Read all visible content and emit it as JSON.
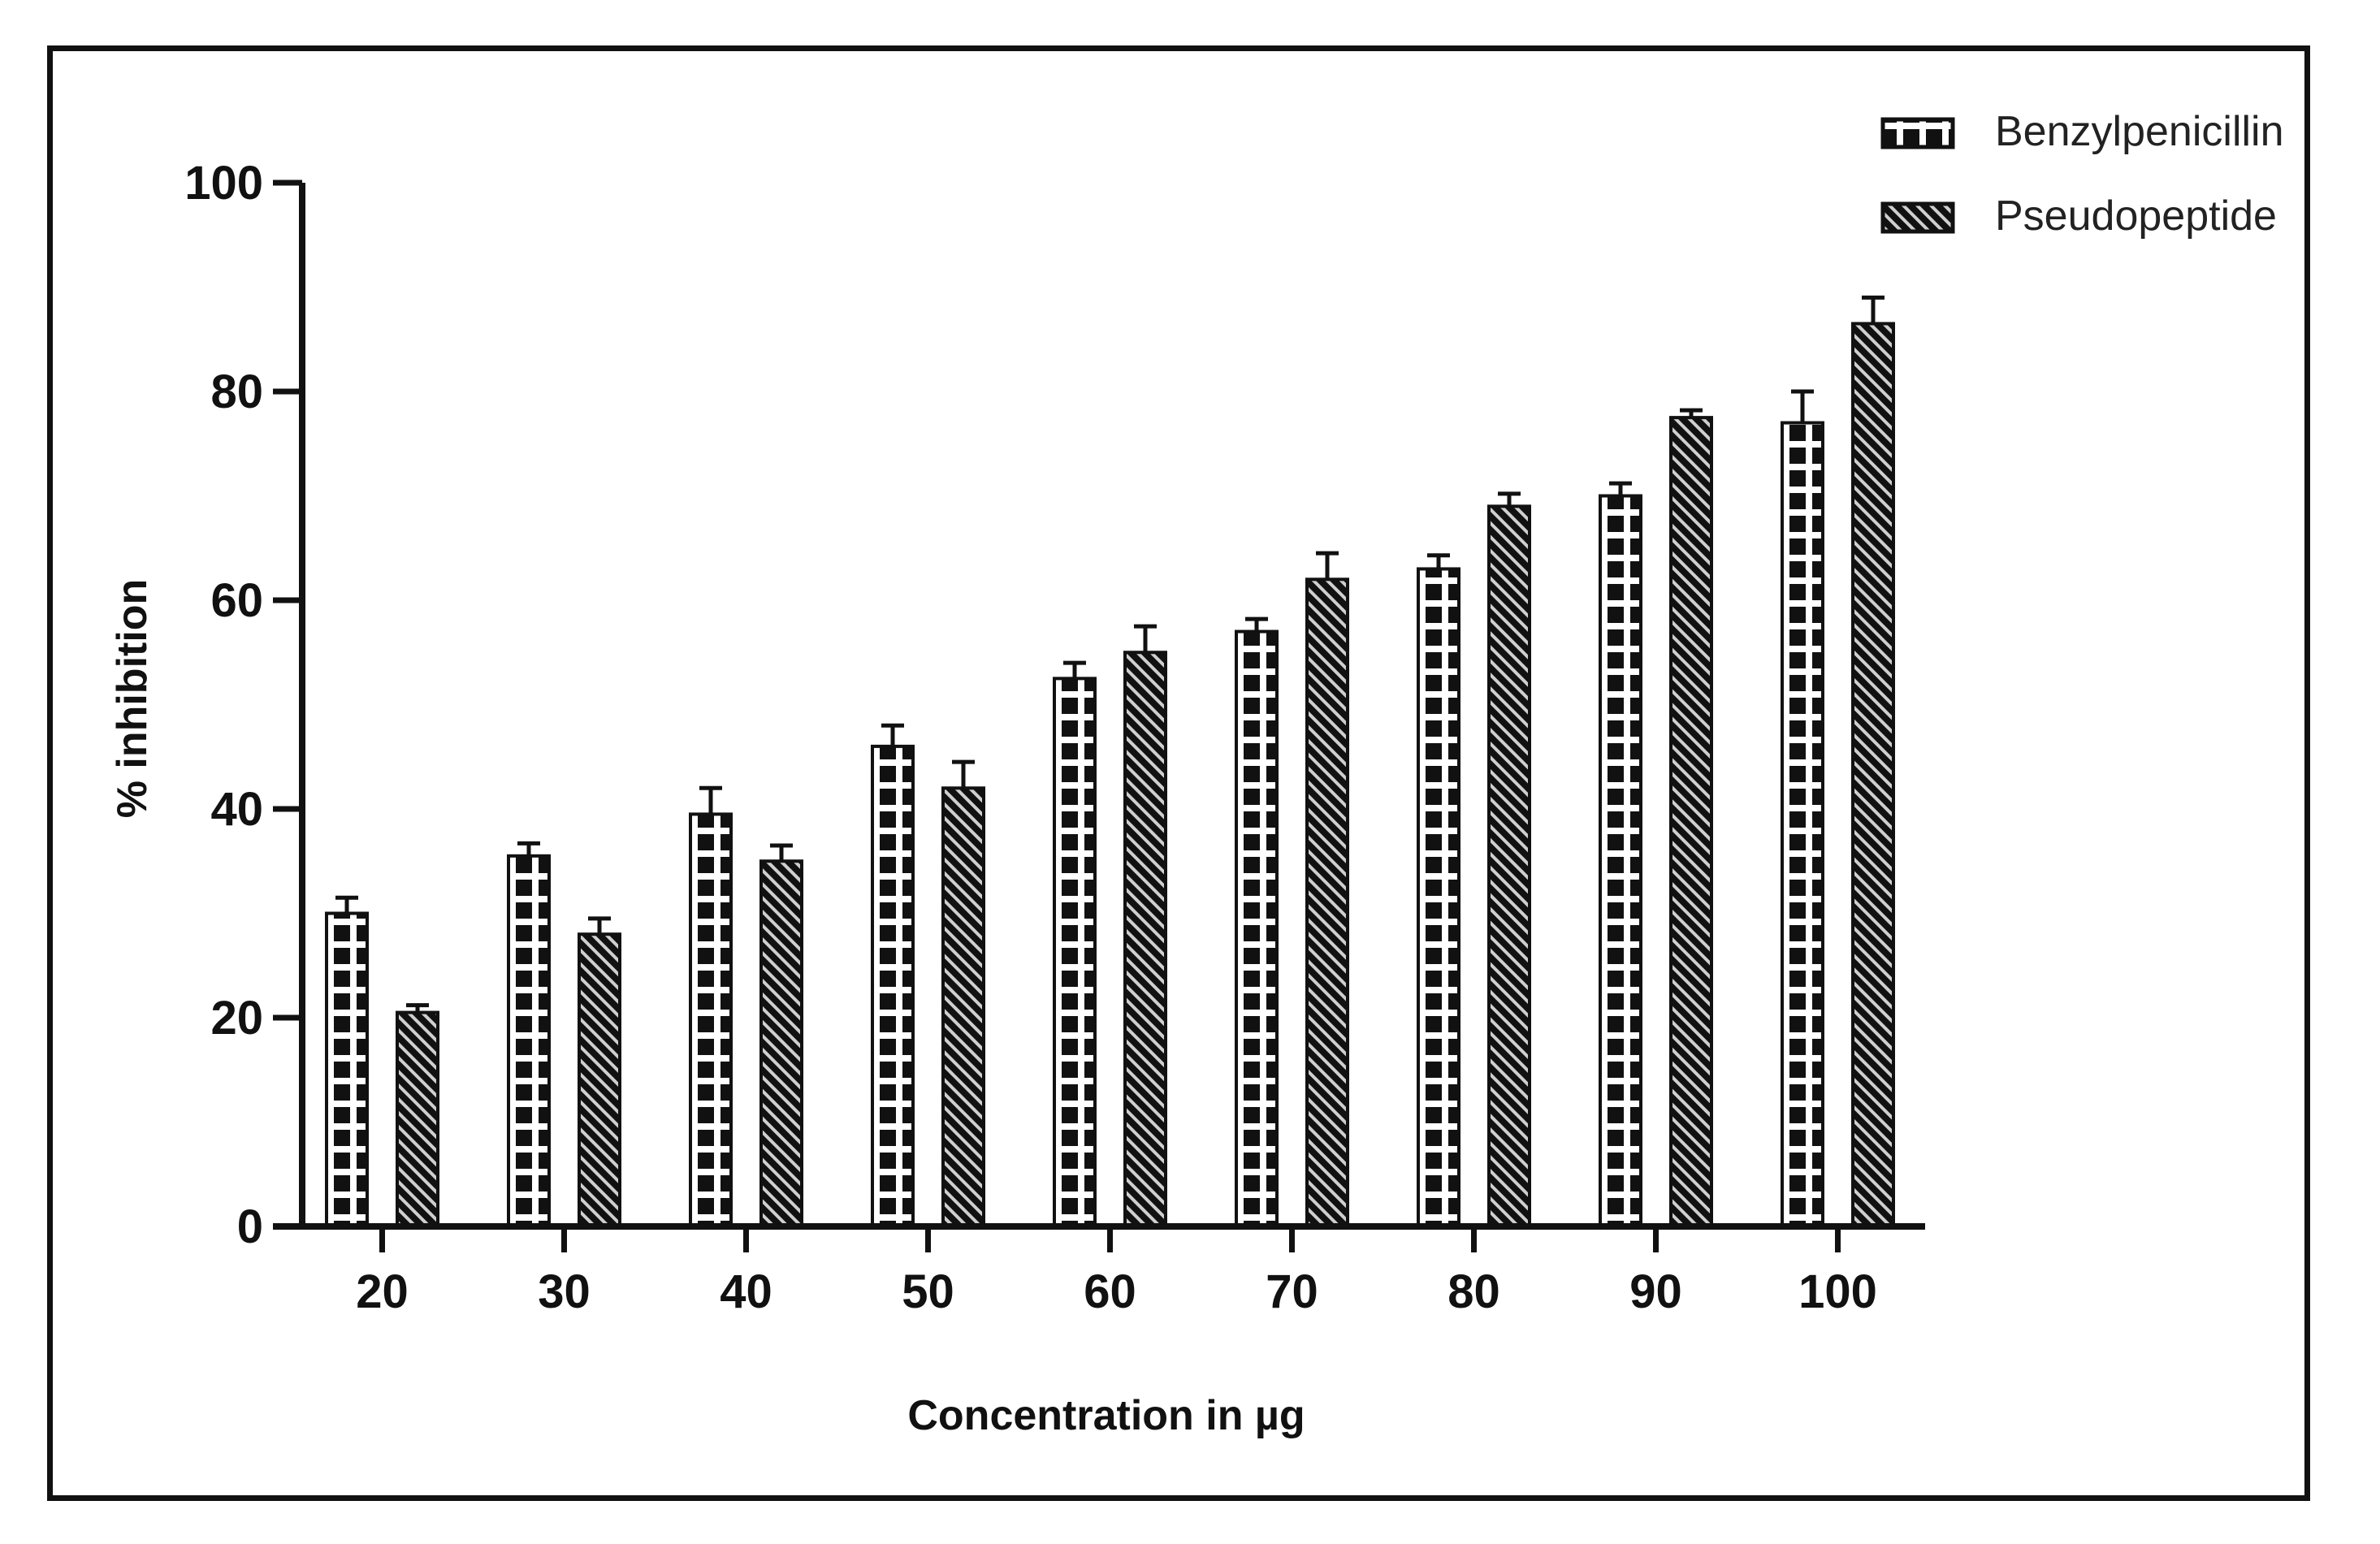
{
  "chart_data": {
    "type": "bar",
    "title": "",
    "xlabel": "Concentration in µg",
    "ylabel": "% inhibition",
    "ylim": [
      0,
      100
    ],
    "yticks": [
      0,
      20,
      40,
      60,
      80,
      100
    ],
    "grid": false,
    "legend_position": "top-right",
    "categories": [
      "20",
      "30",
      "40",
      "50",
      "60",
      "70",
      "80",
      "90",
      "100"
    ],
    "series": [
      {
        "name": "Benzylpenicillin",
        "pattern": "grid-white-on-black",
        "values": [
          30,
          35.5,
          39.5,
          46,
          52.5,
          57,
          63,
          70,
          77
        ],
        "errors": [
          1.5,
          1.2,
          2.5,
          2,
          1.5,
          1.2,
          1.3,
          1.2,
          3
        ]
      },
      {
        "name": "Pseudopeptide",
        "pattern": "diagonal-hatch-on-black",
        "values": [
          20.5,
          28,
          35,
          42,
          55,
          62,
          69,
          77.5,
          86.5
        ],
        "errors": [
          0.7,
          1.5,
          1.5,
          2.5,
          2.5,
          2.5,
          1.2,
          0.7,
          2.5
        ]
      }
    ]
  },
  "colors": {
    "ink": "#111111",
    "background": "#ffffff"
  }
}
